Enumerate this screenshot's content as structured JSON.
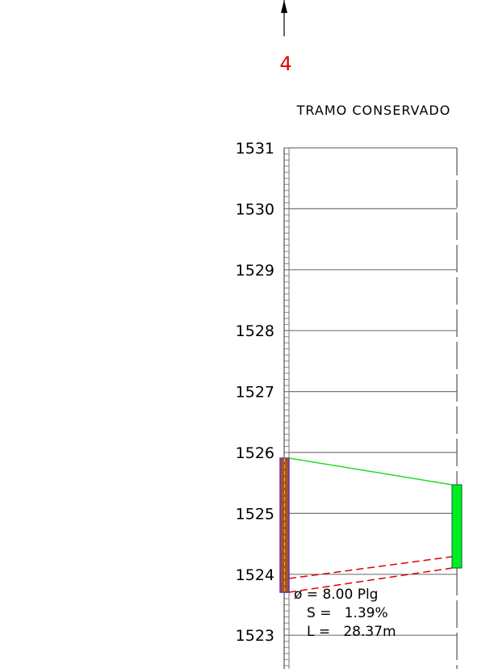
{
  "marker": {
    "label": "4"
  },
  "title": "TRAMO CONSERVADO",
  "elevations": [
    "1531",
    "1530",
    "1529",
    "1528",
    "1527",
    "1526",
    "1525",
    "1524",
    "1523"
  ],
  "pipe": {
    "lines": [
      "ø = 8.00 Plg",
      "S =   1.39%",
      "L =   28.37m"
    ]
  }
}
